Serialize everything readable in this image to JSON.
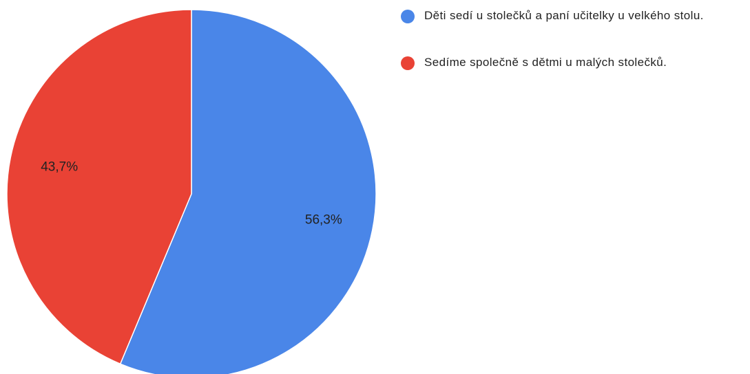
{
  "chart_data": {
    "type": "pie",
    "categories": [
      "Děti sedí u stolečků a paní učitelky u velkého stolu.",
      "Sedíme společně s dětmi u malých stolečků."
    ],
    "values": [
      56.3,
      43.7
    ],
    "value_labels": [
      "56,3%",
      "43,7%"
    ],
    "colors": [
      "#4a86e8",
      "#e94235"
    ],
    "legend": "right"
  }
}
